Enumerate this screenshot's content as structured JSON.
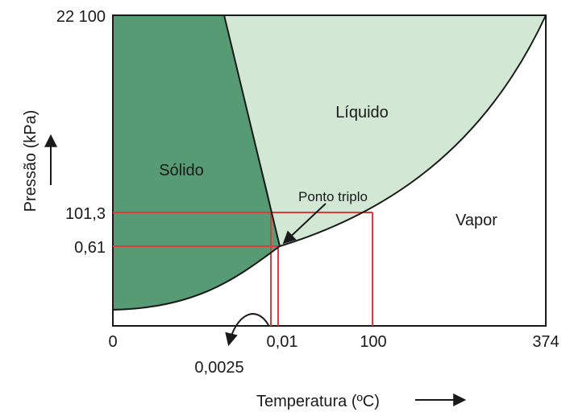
{
  "chart_data": {
    "type": "phase-diagram",
    "xlabel": "Temperatura (ºC)",
    "ylabel": "Pressão (kPa)",
    "x_ticks": [
      "0",
      "0,01",
      "100",
      "374"
    ],
    "y_ticks": [
      "22 100",
      "101,3",
      "0,61"
    ],
    "extra_x_label": "0,0025",
    "regions": {
      "solid": "Sólido",
      "liquid": "Líquido",
      "vapor": "Vapor"
    },
    "annotations": {
      "triple_point": "Ponto triplo"
    },
    "key_points": {
      "triple_point": {
        "temperature": "0,01",
        "pressure": "0,61"
      },
      "normal_melting": {
        "temperature": "0,0025",
        "pressure": "101,3"
      },
      "normal_boiling": {
        "temperature": "100",
        "pressure": "101,3"
      },
      "critical_point": {
        "temperature": "374",
        "pressure": "22 100"
      }
    }
  },
  "colors": {
    "solid": "#569b74",
    "liquid": "#d2e8d4",
    "guides": "#e03a3a",
    "lines": "#1a1a1a"
  }
}
